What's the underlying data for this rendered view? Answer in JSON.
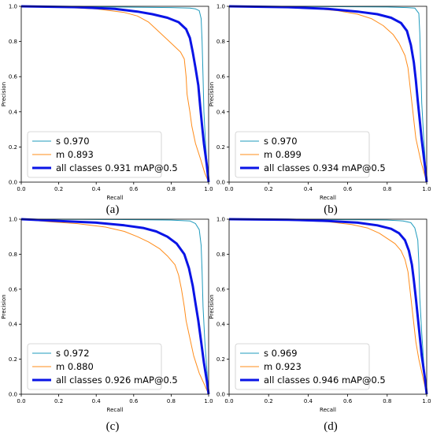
{
  "chart_data": [
    {
      "type": "line",
      "panel_label": "(a)",
      "xlabel": "Recall",
      "ylabel": "Precision",
      "xlim": [
        0,
        1
      ],
      "ylim": [
        0,
        1
      ],
      "x_ticks": [
        "0.0",
        "0.2",
        "0.4",
        "0.6",
        "0.8",
        "1.0"
      ],
      "y_ticks": [
        "0.0",
        "0.2",
        "0.4",
        "0.6",
        "0.8",
        "1.0"
      ],
      "grid": false,
      "legend_position": "lower-left",
      "series": [
        {
          "name": "s 0.970",
          "color": "#1f9bbd",
          "line_width": "thin",
          "points": [
            [
              0,
              1
            ],
            [
              0.3,
              0.998
            ],
            [
              0.6,
              0.995
            ],
            [
              0.8,
              0.993
            ],
            [
              0.9,
              0.99
            ],
            [
              0.93,
              0.985
            ],
            [
              0.95,
              0.975
            ],
            [
              0.96,
              0.93
            ],
            [
              0.965,
              0.8
            ],
            [
              0.97,
              0.6
            ],
            [
              0.975,
              0.4
            ],
            [
              0.985,
              0.2
            ],
            [
              1.0,
              0.0
            ]
          ]
        },
        {
          "name": "m 0.893",
          "color": "#ff8c1a",
          "line_width": "thin",
          "points": [
            [
              0,
              1
            ],
            [
              0.2,
              0.995
            ],
            [
              0.4,
              0.985
            ],
            [
              0.55,
              0.965
            ],
            [
              0.62,
              0.945
            ],
            [
              0.68,
              0.91
            ],
            [
              0.72,
              0.87
            ],
            [
              0.76,
              0.83
            ],
            [
              0.8,
              0.79
            ],
            [
              0.85,
              0.74
            ],
            [
              0.87,
              0.7
            ],
            [
              0.88,
              0.6
            ],
            [
              0.885,
              0.5
            ],
            [
              0.9,
              0.4
            ],
            [
              0.91,
              0.32
            ],
            [
              0.93,
              0.22
            ],
            [
              0.96,
              0.12
            ],
            [
              0.98,
              0.05
            ],
            [
              1.0,
              0.0
            ]
          ]
        },
        {
          "name": "all classes 0.931 mAP@0.5",
          "color": "#0a14e6",
          "line_width": "thick",
          "points": [
            [
              0,
              1
            ],
            [
              0.3,
              0.995
            ],
            [
              0.5,
              0.985
            ],
            [
              0.62,
              0.97
            ],
            [
              0.7,
              0.955
            ],
            [
              0.78,
              0.935
            ],
            [
              0.84,
              0.91
            ],
            [
              0.88,
              0.87
            ],
            [
              0.9,
              0.82
            ],
            [
              0.915,
              0.74
            ],
            [
              0.93,
              0.65
            ],
            [
              0.945,
              0.55
            ],
            [
              0.955,
              0.43
            ],
            [
              0.965,
              0.32
            ],
            [
              0.975,
              0.22
            ],
            [
              0.99,
              0.1
            ],
            [
              1.0,
              0.0
            ]
          ]
        }
      ]
    },
    {
      "type": "line",
      "panel_label": "(b)",
      "xlabel": "Recall",
      "ylabel": "Precision",
      "xlim": [
        0,
        1
      ],
      "ylim": [
        0,
        1
      ],
      "x_ticks": [
        "0.0",
        "0.2",
        "0.4",
        "0.6",
        "0.8",
        "1.0"
      ],
      "y_ticks": [
        "0.0",
        "0.2",
        "0.4",
        "0.6",
        "0.8",
        "1.0"
      ],
      "grid": false,
      "legend_position": "lower-left",
      "series": [
        {
          "name": "s 0.970",
          "color": "#1f9bbd",
          "line_width": "thin",
          "points": [
            [
              0,
              1
            ],
            [
              0.5,
              0.998
            ],
            [
              0.8,
              0.996
            ],
            [
              0.9,
              0.993
            ],
            [
              0.94,
              0.99
            ],
            [
              0.96,
              0.96
            ],
            [
              0.965,
              0.85
            ],
            [
              0.97,
              0.65
            ],
            [
              0.975,
              0.45
            ],
            [
              0.985,
              0.25
            ],
            [
              1.0,
              0.0
            ]
          ]
        },
        {
          "name": "m 0.899",
          "color": "#ff8c1a",
          "line_width": "thin",
          "points": [
            [
              0,
              1
            ],
            [
              0.2,
              0.995
            ],
            [
              0.4,
              0.99
            ],
            [
              0.55,
              0.975
            ],
            [
              0.65,
              0.955
            ],
            [
              0.72,
              0.93
            ],
            [
              0.78,
              0.89
            ],
            [
              0.83,
              0.84
            ],
            [
              0.86,
              0.79
            ],
            [
              0.89,
              0.72
            ],
            [
              0.905,
              0.65
            ],
            [
              0.915,
              0.55
            ],
            [
              0.925,
              0.45
            ],
            [
              0.935,
              0.35
            ],
            [
              0.945,
              0.25
            ],
            [
              0.97,
              0.12
            ],
            [
              1.0,
              0.0
            ]
          ]
        },
        {
          "name": "all classes 0.934 mAP@0.5",
          "color": "#0a14e6",
          "line_width": "thick",
          "points": [
            [
              0,
              1
            ],
            [
              0.3,
              0.995
            ],
            [
              0.5,
              0.985
            ],
            [
              0.65,
              0.97
            ],
            [
              0.75,
              0.955
            ],
            [
              0.82,
              0.935
            ],
            [
              0.87,
              0.905
            ],
            [
              0.9,
              0.86
            ],
            [
              0.92,
              0.78
            ],
            [
              0.935,
              0.68
            ],
            [
              0.945,
              0.58
            ],
            [
              0.955,
              0.46
            ],
            [
              0.965,
              0.35
            ],
            [
              0.975,
              0.24
            ],
            [
              0.99,
              0.1
            ],
            [
              1.0,
              0.0
            ]
          ]
        }
      ]
    },
    {
      "type": "line",
      "panel_label": "(c)",
      "xlabel": "Recall",
      "ylabel": "Precision",
      "xlim": [
        0,
        1
      ],
      "ylim": [
        0,
        1
      ],
      "x_ticks": [
        "0.0",
        "0.2",
        "0.4",
        "0.6",
        "0.8",
        "1.0"
      ],
      "y_ticks": [
        "0.0",
        "0.2",
        "0.4",
        "0.6",
        "0.8",
        "1.0"
      ],
      "grid": false,
      "legend_position": "lower-left",
      "series": [
        {
          "name": "s 0.972",
          "color": "#1f9bbd",
          "line_width": "thin",
          "points": [
            [
              0,
              1
            ],
            [
              0.5,
              0.998
            ],
            [
              0.8,
              0.995
            ],
            [
              0.9,
              0.99
            ],
            [
              0.93,
              0.975
            ],
            [
              0.95,
              0.94
            ],
            [
              0.96,
              0.85
            ],
            [
              0.965,
              0.7
            ],
            [
              0.97,
              0.5
            ],
            [
              0.98,
              0.3
            ],
            [
              0.99,
              0.15
            ],
            [
              1.0,
              0.0
            ]
          ]
        },
        {
          "name": "m 0.880",
          "color": "#ff8c1a",
          "line_width": "thin",
          "points": [
            [
              0,
              1
            ],
            [
              0.15,
              0.985
            ],
            [
              0.3,
              0.975
            ],
            [
              0.45,
              0.955
            ],
            [
              0.55,
              0.93
            ],
            [
              0.62,
              0.9
            ],
            [
              0.68,
              0.87
            ],
            [
              0.74,
              0.83
            ],
            [
              0.78,
              0.79
            ],
            [
              0.82,
              0.74
            ],
            [
              0.84,
              0.68
            ],
            [
              0.855,
              0.6
            ],
            [
              0.87,
              0.5
            ],
            [
              0.88,
              0.42
            ],
            [
              0.9,
              0.32
            ],
            [
              0.92,
              0.22
            ],
            [
              0.95,
              0.12
            ],
            [
              0.98,
              0.05
            ],
            [
              1.0,
              0.0
            ]
          ]
        },
        {
          "name": "all classes 0.926 mAP@0.5",
          "color": "#0a14e6",
          "line_width": "thick",
          "points": [
            [
              0,
              1
            ],
            [
              0.2,
              0.99
            ],
            [
              0.4,
              0.98
            ],
            [
              0.55,
              0.965
            ],
            [
              0.65,
              0.95
            ],
            [
              0.72,
              0.93
            ],
            [
              0.78,
              0.9
            ],
            [
              0.83,
              0.86
            ],
            [
              0.87,
              0.8
            ],
            [
              0.895,
              0.72
            ],
            [
              0.915,
              0.62
            ],
            [
              0.93,
              0.52
            ],
            [
              0.945,
              0.42
            ],
            [
              0.96,
              0.3
            ],
            [
              0.975,
              0.18
            ],
            [
              0.99,
              0.08
            ],
            [
              1.0,
              0.0
            ]
          ]
        }
      ]
    },
    {
      "type": "line",
      "panel_label": "(d)",
      "xlabel": "Recall",
      "ylabel": "Precision",
      "xlim": [
        0,
        1
      ],
      "ylim": [
        0,
        1
      ],
      "x_ticks": [
        "0.0",
        "0.2",
        "0.4",
        "0.6",
        "0.8",
        "1.0"
      ],
      "y_ticks": [
        "0.0",
        "0.2",
        "0.4",
        "0.6",
        "0.8",
        "1.0"
      ],
      "grid": false,
      "legend_position": "lower-left",
      "series": [
        {
          "name": "s 0.969",
          "color": "#1f9bbd",
          "line_width": "thin",
          "points": [
            [
              0,
              1
            ],
            [
              0.5,
              0.998
            ],
            [
              0.8,
              0.995
            ],
            [
              0.88,
              0.99
            ],
            [
              0.92,
              0.98
            ],
            [
              0.94,
              0.95
            ],
            [
              0.955,
              0.88
            ],
            [
              0.96,
              0.75
            ],
            [
              0.965,
              0.55
            ],
            [
              0.975,
              0.35
            ],
            [
              0.985,
              0.18
            ],
            [
              1.0,
              0.0
            ]
          ]
        },
        {
          "name": "m 0.923",
          "color": "#ff8c1a",
          "line_width": "thin",
          "points": [
            [
              0,
              1
            ],
            [
              0.3,
              0.995
            ],
            [
              0.5,
              0.985
            ],
            [
              0.62,
              0.97
            ],
            [
              0.7,
              0.95
            ],
            [
              0.76,
              0.92
            ],
            [
              0.8,
              0.89
            ],
            [
              0.84,
              0.86
            ],
            [
              0.87,
              0.82
            ],
            [
              0.89,
              0.77
            ],
            [
              0.905,
              0.7
            ],
            [
              0.915,
              0.6
            ],
            [
              0.925,
              0.5
            ],
            [
              0.935,
              0.4
            ],
            [
              0.945,
              0.3
            ],
            [
              0.96,
              0.2
            ],
            [
              0.98,
              0.1
            ],
            [
              1.0,
              0.0
            ]
          ]
        },
        {
          "name": "all classes 0.946 mAP@0.5",
          "color": "#0a14e6",
          "line_width": "thick",
          "points": [
            [
              0,
              1
            ],
            [
              0.3,
              0.997
            ],
            [
              0.5,
              0.99
            ],
            [
              0.65,
              0.98
            ],
            [
              0.75,
              0.965
            ],
            [
              0.82,
              0.945
            ],
            [
              0.86,
              0.92
            ],
            [
              0.89,
              0.88
            ],
            [
              0.91,
              0.82
            ],
            [
              0.925,
              0.74
            ],
            [
              0.935,
              0.65
            ],
            [
              0.945,
              0.55
            ],
            [
              0.955,
              0.44
            ],
            [
              0.965,
              0.33
            ],
            [
              0.975,
              0.22
            ],
            [
              0.99,
              0.1
            ],
            [
              1.0,
              0.0
            ]
          ]
        }
      ]
    }
  ]
}
